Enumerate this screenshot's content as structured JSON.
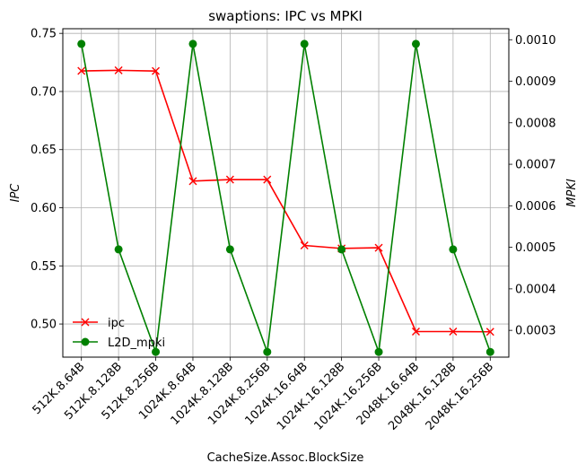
{
  "chart_data": {
    "type": "line",
    "title": "swaptions: IPC vs MPKI",
    "xlabel": "CacheSize.Assoc.BlockSize",
    "ylabel_left": "IPC",
    "ylabel_right": "MPKI",
    "categories": [
      "512K.8.64B",
      "512K.8.128B",
      "512K.8.256B",
      "1024K.8.64B",
      "1024K.8.128B",
      "1024K.8.256B",
      "1024K.16.64B",
      "1024K.16.128B",
      "1024K.16.256B",
      "2048K.16.64B",
      "2048K.16.128B",
      "2048K.16.256B"
    ],
    "series": [
      {
        "name": "ipc",
        "axis": "left",
        "color": "#ff0000",
        "marker": "x",
        "values": [
          0.7177,
          0.7182,
          0.7176,
          0.6229,
          0.6242,
          0.6242,
          0.5676,
          0.565,
          0.5656,
          0.4935,
          0.4935,
          0.4933
        ]
      },
      {
        "name": "L2D_mpki",
        "axis": "right",
        "color": "#008000",
        "marker": "circle",
        "values": [
          0.00099,
          0.000495,
          0.000248,
          0.00099,
          0.000495,
          0.000248,
          0.00099,
          0.000495,
          0.000248,
          0.00099,
          0.000495,
          0.000248
        ]
      }
    ],
    "ylim_left": [
      0.4715,
      0.754
    ],
    "ylim_right": [
      0.0002355,
      0.0010265
    ],
    "yticks_left": [
      "0.50",
      "0.55",
      "0.60",
      "0.65",
      "0.70",
      "0.75"
    ],
    "yticks_right": [
      "0.0003",
      "0.0004",
      "0.0005",
      "0.0006",
      "0.0007",
      "0.0008",
      "0.0009",
      "0.0010"
    ],
    "grid": true,
    "legend_position": "lower-left"
  }
}
